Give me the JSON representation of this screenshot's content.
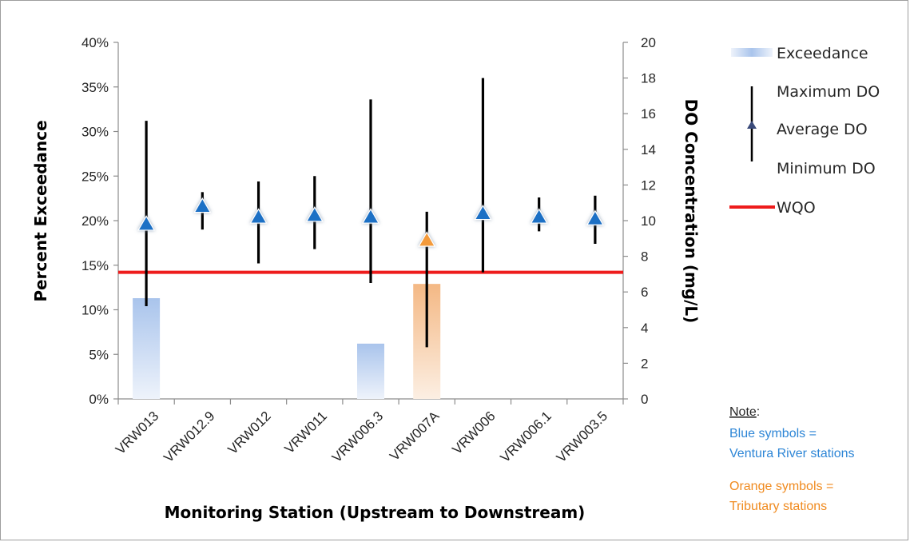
{
  "colors": {
    "blue_fill": "#b8cfee",
    "orange_fill": "#f6c9a2",
    "blue_marker": "#1f6fc5",
    "orange_marker": "#f39a3a",
    "wqo_line": "#ee1c1c",
    "whisker": "#000000",
    "note_blue": "#2e86d6",
    "note_orange": "#f08a1e"
  },
  "chart_data": {
    "type": "bar",
    "categories": [
      "VRW013",
      "VRW012.9",
      "VRW012",
      "VRW011",
      "VRW006.3",
      "VRW007A",
      "VRW006",
      "VRW006.1",
      "VRW003.5"
    ],
    "station_type": [
      "river",
      "river",
      "river",
      "river",
      "river",
      "tributary",
      "river",
      "river",
      "river"
    ],
    "exceedance_pct": [
      11.3,
      0,
      0,
      0,
      6.2,
      12.9,
      0,
      0,
      0
    ],
    "do_average": [
      9.8,
      10.8,
      10.2,
      10.3,
      10.2,
      8.9,
      10.4,
      10.2,
      10.1
    ],
    "do_maximum": [
      15.6,
      11.6,
      12.2,
      12.5,
      16.8,
      10.5,
      18.0,
      11.3,
      11.4
    ],
    "do_minimum": [
      5.2,
      9.5,
      7.6,
      8.4,
      6.5,
      2.9,
      7.1,
      9.4,
      8.7
    ],
    "wqo": 7.1,
    "xlabel": "Monitoring Station (Upstream to Downstream)",
    "ylabel_left": "Percent Exceedance",
    "ylabel_right": "DO Concentration (mg/L)",
    "ylim_left": [
      0,
      40
    ],
    "ylim_right": [
      0,
      20
    ],
    "yticks_left": [
      "0%",
      "5%",
      "10%",
      "15%",
      "20%",
      "25%",
      "30%",
      "35%",
      "40%"
    ],
    "yticks_right": [
      "0",
      "2",
      "4",
      "6",
      "8",
      "10",
      "12",
      "14",
      "16",
      "18",
      "20"
    ],
    "legend": {
      "exceedance": "Exceedance",
      "maximum": "Maximum DO",
      "average": "Average DO",
      "minimum": "Minimum DO",
      "wqo": "WQO"
    },
    "legend_position": "right",
    "grid": false
  },
  "note": {
    "title": "Note",
    "colon": ":",
    "blue_lines": [
      "Blue symbols =",
      "Ventura River stations"
    ],
    "orange_lines": [
      "Orange symbols =",
      "Tributary stations"
    ]
  }
}
